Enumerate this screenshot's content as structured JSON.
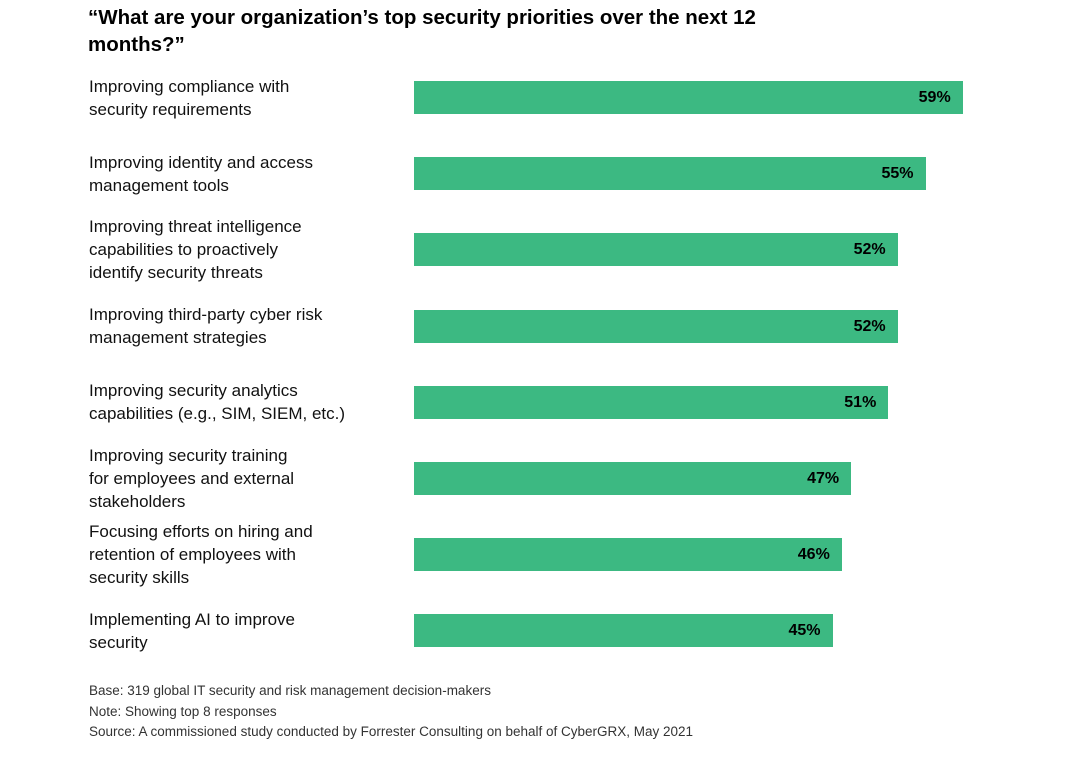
{
  "chart_data": {
    "type": "bar",
    "orientation": "horizontal",
    "title": "“What are your organization’s top security priorities over the next 12 months?”",
    "categories": [
      "Improving compliance with security requirements",
      "Improving identity and access management tools",
      "Improving threat intelligence capabilities to proactively identify security threats",
      "Improving third-party cyber risk management strategies",
      "Improving security analytics capabilities (e.g., SIM, SIEM, etc.)",
      "Improving security training for employees and external stakeholders",
      "Focusing efforts on hiring and retention of employees with security skills",
      "Implementing AI to improve security"
    ],
    "category_lines": [
      [
        "Improving compliance with",
        "security requirements"
      ],
      [
        "Improving identity and access",
        "management tools"
      ],
      [
        "Improving threat intelligence",
        "capabilities to proactively",
        "identify security threats"
      ],
      [
        "Improving third-party cyber risk",
        "management strategies"
      ],
      [
        "Improving security analytics",
        "capabilities (e.g., SIM, SIEM, etc.)"
      ],
      [
        "Improving security training",
        "for employees and external",
        "stakeholders"
      ],
      [
        "Focusing efforts on hiring and",
        "retention of employees with",
        "security skills"
      ],
      [
        "Implementing AI to improve",
        "security"
      ]
    ],
    "values": [
      59,
      55,
      52,
      52,
      51,
      47,
      46,
      45
    ],
    "value_labels": [
      "59%",
      "55%",
      "52%",
      "52%",
      "51%",
      "47%",
      "46%",
      "45%"
    ],
    "unit": "%",
    "xlim": [
      0,
      100
    ],
    "grid": false,
    "legend": "none",
    "bar_color": "#3cb982"
  },
  "footnotes": {
    "base": "Base: 319 global IT security and risk management decision-makers",
    "note": "Note: Showing top 8 responses",
    "source": "Source: A commissioned study conducted by Forrester Consulting on behalf of CyberGRX, May 2021"
  }
}
